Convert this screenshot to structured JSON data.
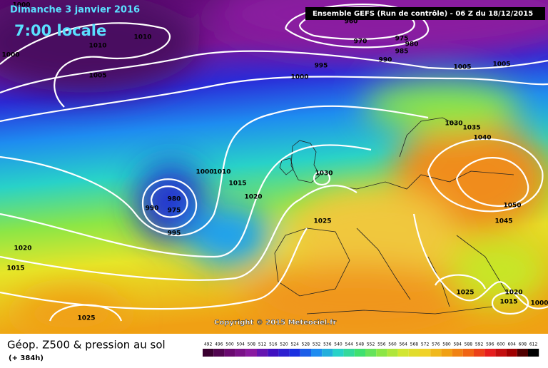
{
  "header": {
    "date": "Dimanche 3 janvier 2016",
    "time": "7:00 locale",
    "model": "Ensemble GEFS  (Run de contrôle)  - 06 Z du 18/12/2015"
  },
  "copyright": "Copyright © 2015 Meteociel.fr",
  "footer": {
    "title": "Géop. Z500 & pression au sol",
    "lead": "(+ 384h)"
  },
  "isobar_labels": [
    "1000",
    "1010",
    "1010",
    "1000",
    "1005",
    "960",
    "970",
    "975",
    "980",
    "985",
    "990",
    "995",
    "1000",
    "1005",
    "1005",
    "1030",
    "1035",
    "1040",
    "1030",
    "1000",
    "1010",
    "1015",
    "1020",
    "980",
    "990",
    "975",
    "995",
    "1025",
    "1050",
    "1045",
    "1020",
    "1015",
    "1025",
    "1025",
    "1020",
    "1015",
    "1000"
  ],
  "colorbar": {
    "ticks": [
      492,
      496,
      500,
      504,
      508,
      512,
      516,
      520,
      524,
      528,
      532,
      536,
      540,
      544,
      548,
      552,
      556,
      560,
      564,
      568,
      572,
      576,
      580,
      584,
      588,
      592,
      596,
      600,
      604,
      608,
      612
    ]
  }
}
